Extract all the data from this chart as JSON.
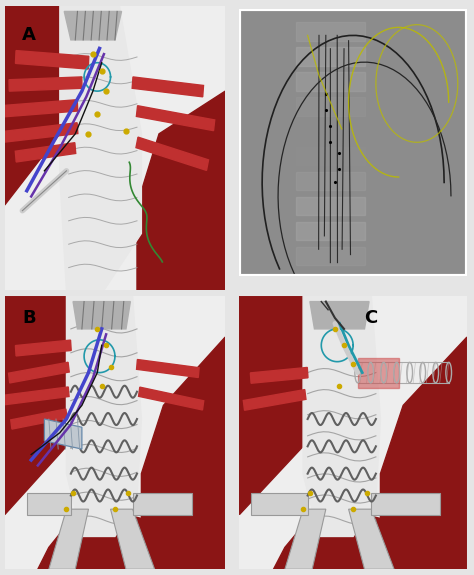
{
  "background_color": "#e5e5e5",
  "panels": {
    "A_label": "A",
    "B_label": "B",
    "C_label": "C"
  },
  "label_fontsize": 13,
  "label_fontweight": "bold",
  "bg_panel": "#eeeeee",
  "aorta_white": "#e8e8e8",
  "aorta_light": "#d0d0d0",
  "vessel_dark_red": "#8B1515",
  "vessel_mid_red": "#A52020",
  "vessel_bright_red": "#C03030",
  "stent_gray": "#909090",
  "wire_blue": "#4444cc",
  "wire_purple": "#6633aa",
  "wire_black": "#111111",
  "wire_teal": "#2299aa",
  "wire_green": "#338833",
  "gold": "#ccaa00",
  "xray_bg": "#888888",
  "collar_gray": "#b0b0b0",
  "coil_gray": "#606060",
  "mesh_gray": "#aaaaaa"
}
